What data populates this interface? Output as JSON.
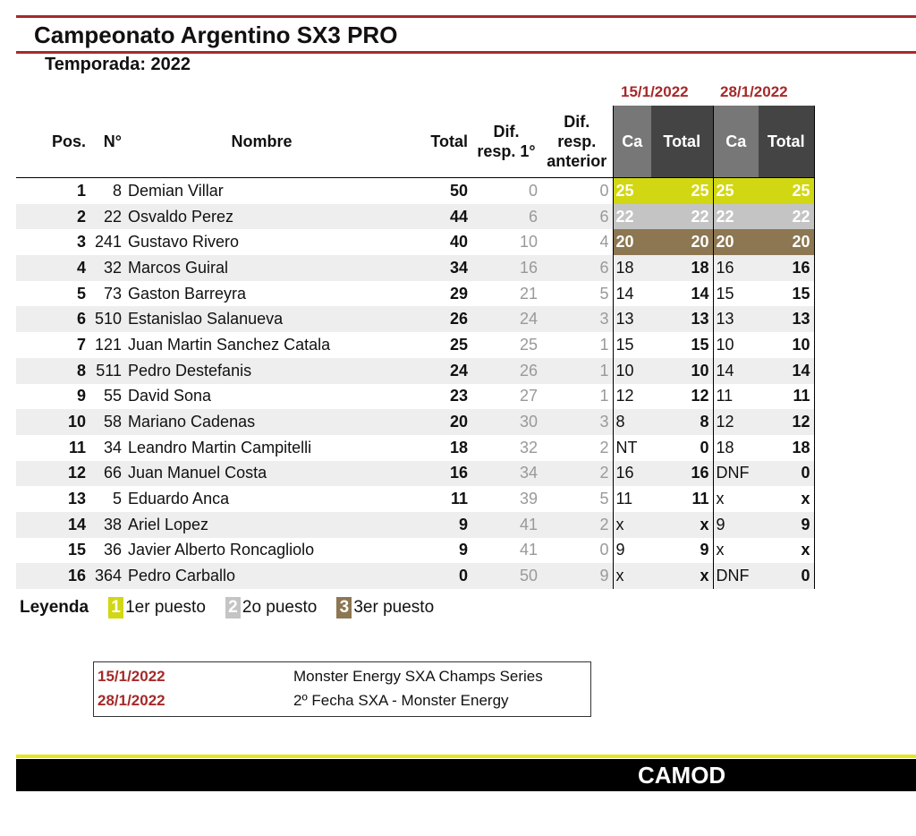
{
  "header": {
    "title": "Campeonato Argentino SX3 PRO",
    "season": "Temporada: 2022"
  },
  "table": {
    "event_dates": [
      "15/1/2022",
      "28/1/2022"
    ],
    "columns": [
      "Pos.",
      "N°",
      "Nombre",
      "Total",
      "Dif.\nresp. 1°",
      "Dif.\nresp.\nanterior",
      "Ca",
      "Total",
      "Ca",
      "Total"
    ],
    "rows": [
      [
        1,
        8,
        "Demian Villar",
        50,
        0,
        0,
        25,
        25,
        25,
        25
      ],
      [
        2,
        22,
        "Osvaldo Perez",
        44,
        6,
        6,
        22,
        22,
        22,
        22
      ],
      [
        3,
        241,
        "Gustavo Rivero",
        40,
        10,
        4,
        20,
        20,
        20,
        20
      ],
      [
        4,
        32,
        "Marcos Guiral",
        34,
        16,
        6,
        18,
        18,
        16,
        16
      ],
      [
        5,
        73,
        "Gaston Barreyra",
        29,
        21,
        5,
        14,
        14,
        15,
        15
      ],
      [
        6,
        510,
        "Estanislao Salanueva",
        26,
        24,
        3,
        13,
        13,
        13,
        13
      ],
      [
        7,
        121,
        "Juan Martin Sanchez Catala",
        25,
        25,
        1,
        15,
        15,
        10,
        10
      ],
      [
        8,
        511,
        "Pedro Destefanis",
        24,
        26,
        1,
        10,
        10,
        14,
        14
      ],
      [
        9,
        55,
        "David Sona",
        23,
        27,
        1,
        12,
        12,
        11,
        11
      ],
      [
        10,
        58,
        "Mariano Cadenas",
        20,
        30,
        3,
        8,
        8,
        12,
        12
      ],
      [
        11,
        34,
        "Leandro Martin Campitelli",
        18,
        32,
        2,
        "NT",
        0,
        18,
        18
      ],
      [
        12,
        66,
        "Juan Manuel Costa",
        16,
        34,
        2,
        16,
        16,
        "DNF",
        0
      ],
      [
        13,
        5,
        "Eduardo Anca",
        11,
        39,
        5,
        11,
        11,
        "x",
        "x"
      ],
      [
        14,
        38,
        "Ariel Lopez",
        9,
        41,
        2,
        "x",
        "x",
        9,
        9
      ],
      [
        15,
        36,
        "Javier Alberto Roncagliolo",
        9,
        41,
        0,
        9,
        9,
        "x",
        "x"
      ],
      [
        16,
        364,
        "Pedro Carballo",
        0,
        50,
        9,
        "x",
        "x",
        "DNF",
        0
      ]
    ]
  },
  "legend": {
    "label": "Leyenda",
    "items": [
      {
        "marker": "1",
        "text": "1er puesto"
      },
      {
        "marker": "2",
        "text": "2o puesto"
      },
      {
        "marker": "3",
        "text": "3er puesto"
      }
    ]
  },
  "events": [
    {
      "date": "15/1/2022",
      "name": "Monster Energy SXA Champs Series"
    },
    {
      "date": "28/1/2022",
      "name": "2º Fecha SXA - Monster Energy"
    }
  ],
  "footer": "CAMOD"
}
